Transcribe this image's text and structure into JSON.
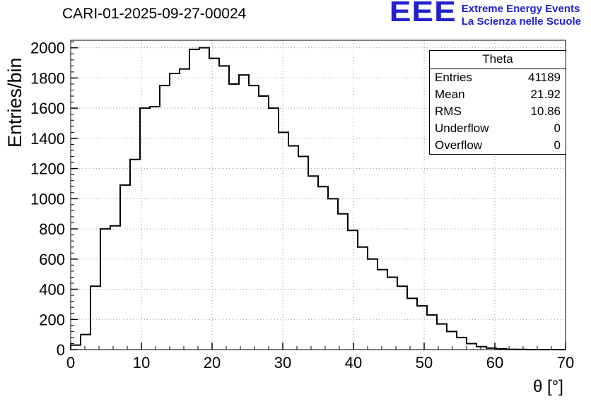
{
  "page": {
    "background": "#ffffff"
  },
  "logo": {
    "text": "EEE",
    "line1": "Extreme Energy Events",
    "line2": "La Scienza nelle Scuole",
    "color": "#2222cc"
  },
  "stats": {
    "header": "Theta",
    "rows": [
      {
        "label": "Entries",
        "value": "41189"
      },
      {
        "label": "Mean",
        "value": "21.92"
      },
      {
        "label": "RMS",
        "value": "10.86"
      },
      {
        "label": "Underflow",
        "value": "0"
      },
      {
        "label": "Overflow",
        "value": "0"
      }
    ]
  },
  "chart_data": {
    "type": "bar",
    "subtype": "histogram-step",
    "title": "CARI-01-2025-09-27-00024",
    "xlabel": "θ [°]",
    "ylabel": "Entries/bin",
    "xlim": [
      0,
      70
    ],
    "ylim": [
      0,
      2050
    ],
    "bin_start": 0,
    "bin_width": 1.4,
    "values": [
      30,
      100,
      420,
      800,
      820,
      1090,
      1260,
      1600,
      1610,
      1750,
      1830,
      1860,
      1990,
      2000,
      1930,
      1880,
      1760,
      1820,
      1750,
      1680,
      1600,
      1440,
      1350,
      1280,
      1150,
      1080,
      1000,
      900,
      790,
      680,
      600,
      530,
      480,
      420,
      340,
      290,
      230,
      170,
      120,
      80,
      40,
      20,
      10,
      5,
      2,
      1,
      0,
      0,
      0,
      0
    ],
    "x_ticks": [
      0,
      10,
      20,
      30,
      40,
      50,
      60,
      70
    ],
    "y_ticks": [
      0,
      200,
      400,
      600,
      800,
      1000,
      1200,
      1400,
      1600,
      1800,
      2000
    ],
    "x_minor_step": 2,
    "y_minor_step": 40,
    "grid": true,
    "grid_style": "dotted",
    "line_color": "#000000",
    "legend_position": "none",
    "stats_box": true
  }
}
